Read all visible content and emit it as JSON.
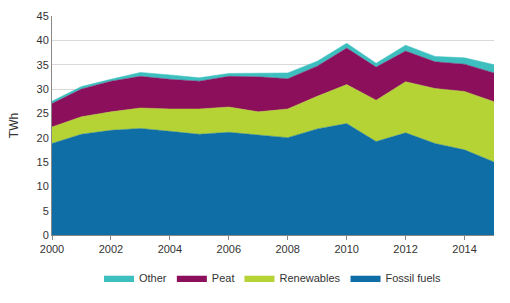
{
  "chart_data": {
    "type": "area",
    "stacked": true,
    "y_label": "TWh",
    "x": [
      2000,
      2001,
      2002,
      2003,
      2004,
      2005,
      2006,
      2007,
      2008,
      2009,
      2010,
      2011,
      2012,
      2013,
      2014,
      2015
    ],
    "series": [
      {
        "name": "Fossil fuels",
        "color": "#0f6ea6",
        "values": [
          18.8,
          20.7,
          21.5,
          21.9,
          21.3,
          20.7,
          21.1,
          20.5,
          20.0,
          21.8,
          22.9,
          19.2,
          21.0,
          18.8,
          17.5,
          15.0
        ]
      },
      {
        "name": "Renewables",
        "color": "#b5d334",
        "values": [
          3.4,
          3.6,
          3.8,
          4.2,
          4.6,
          5.2,
          5.2,
          4.8,
          5.9,
          6.7,
          8.0,
          8.5,
          10.5,
          11.3,
          12.0,
          12.4
        ]
      },
      {
        "name": "Peat",
        "color": "#8c0f5c",
        "values": [
          4.8,
          5.7,
          6.3,
          6.5,
          6.1,
          5.7,
          6.3,
          7.2,
          6.2,
          6.2,
          7.5,
          6.8,
          6.3,
          5.5,
          5.6,
          5.9
        ]
      },
      {
        "name": "Other",
        "color": "#3dbfbf",
        "values": [
          0.5,
          0.5,
          0.4,
          0.8,
          0.9,
          0.7,
          0.6,
          0.7,
          1.2,
          1.0,
          1.0,
          0.8,
          1.2,
          1.1,
          1.3,
          1.7
        ]
      }
    ],
    "xlim": [
      2000,
      2015
    ],
    "xticks": [
      2000,
      2002,
      2004,
      2006,
      2008,
      2010,
      2012,
      2014
    ],
    "ylim": [
      0,
      45
    ],
    "yticks": [
      0,
      5,
      10,
      15,
      20,
      25,
      30,
      35,
      40,
      45
    ],
    "grid": true,
    "legend": "bottom"
  }
}
